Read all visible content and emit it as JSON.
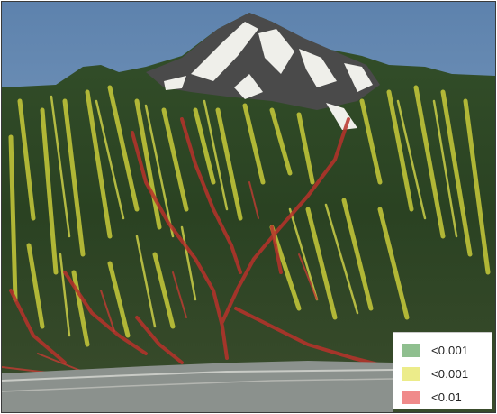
{
  "legend": {
    "items": [
      {
        "label": "<0.001",
        "color": "#8fbf8f",
        "meaning": "green"
      },
      {
        "label": "<0.001",
        "color": "#ecec8a",
        "meaning": "yellow"
      },
      {
        "label": "<0.01",
        "color": "#f08a8a",
        "meaning": "red"
      }
    ]
  },
  "colors": {
    "sky": "#6f8fb2",
    "forest_dark": "#22361e",
    "forest_mid": "#3f5a2c",
    "overlay_yellow": "#c9cc3c",
    "overlay_red": "#b5302a",
    "snow": "#eeeeea",
    "valley_floor": "#8a8f8c"
  }
}
